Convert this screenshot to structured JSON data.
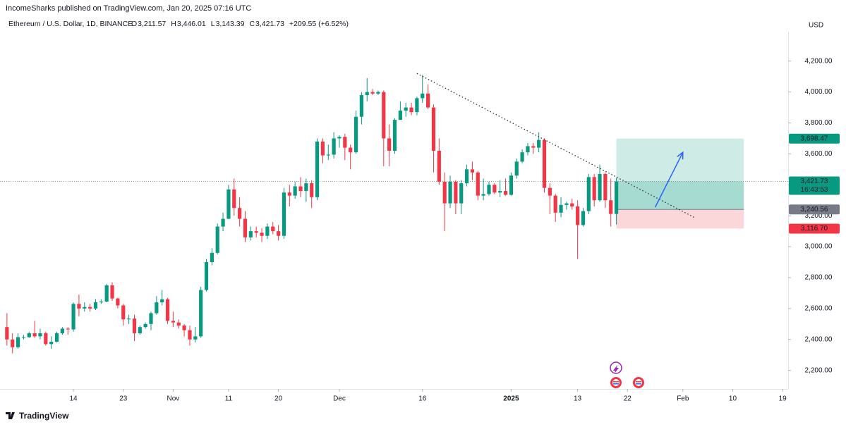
{
  "header": "IncomeSharks published on TradingView.com, Jan 20, 2025 07:16 UTC",
  "brand": "TradingView",
  "chart_data": {
    "type": "candlestick",
    "title": "Ethereum / U.S. Dollar, 1D, BINANCE",
    "currency": "USD",
    "ohlc_legend": [
      {
        "key": "O",
        "value": 3211.57,
        "label": "3,211.57"
      },
      {
        "key": "H",
        "value": 3446.01,
        "label": "3,446.01"
      },
      {
        "key": "L",
        "value": 3143.39,
        "label": "3,143.39"
      },
      {
        "key": "C",
        "value": 3421.73,
        "label": "3,421.73"
      }
    ],
    "change_label": "+209.55 (+6.52%)",
    "up_color": "#089981",
    "down_color": "#f23645",
    "x": [
      "2024-10-02",
      "2024-10-03",
      "2024-10-04",
      "2024-10-05",
      "2024-10-06",
      "2024-10-07",
      "2024-10-08",
      "2024-10-09",
      "2024-10-10",
      "2024-10-11",
      "2024-10-12",
      "2024-10-13",
      "2024-10-14",
      "2024-10-15",
      "2024-10-16",
      "2024-10-17",
      "2024-10-18",
      "2024-10-19",
      "2024-10-20",
      "2024-10-21",
      "2024-10-22",
      "2024-10-23",
      "2024-10-24",
      "2024-10-25",
      "2024-10-26",
      "2024-10-27",
      "2024-10-28",
      "2024-10-29",
      "2024-10-30",
      "2024-10-31",
      "2024-11-01",
      "2024-11-02",
      "2024-11-03",
      "2024-11-04",
      "2024-11-05",
      "2024-11-06",
      "2024-11-07",
      "2024-11-08",
      "2024-11-09",
      "2024-11-10",
      "2024-11-11",
      "2024-11-12",
      "2024-11-13",
      "2024-11-14",
      "2024-11-15",
      "2024-11-16",
      "2024-11-17",
      "2024-11-18",
      "2024-11-19",
      "2024-11-20",
      "2024-11-21",
      "2024-11-22",
      "2024-11-23",
      "2024-11-24",
      "2024-11-25",
      "2024-11-26",
      "2024-11-27",
      "2024-11-28",
      "2024-11-29",
      "2024-11-30",
      "2024-12-01",
      "2024-12-02",
      "2024-12-03",
      "2024-12-04",
      "2024-12-05",
      "2024-12-06",
      "2024-12-07",
      "2024-12-08",
      "2024-12-09",
      "2024-12-10",
      "2024-12-11",
      "2024-12-12",
      "2024-12-13",
      "2024-12-14",
      "2024-12-15",
      "2024-12-16",
      "2024-12-17",
      "2024-12-18",
      "2024-12-19",
      "2024-12-20",
      "2024-12-21",
      "2024-12-22",
      "2024-12-23",
      "2024-12-24",
      "2024-12-25",
      "2024-12-26",
      "2024-12-27",
      "2024-12-28",
      "2024-12-29",
      "2024-12-30",
      "2024-12-31",
      "2025-01-01",
      "2025-01-02",
      "2025-01-03",
      "2025-01-04",
      "2025-01-05",
      "2025-01-06",
      "2025-01-07",
      "2025-01-08",
      "2025-01-09",
      "2025-01-10",
      "2025-01-11",
      "2025-01-12",
      "2025-01-13",
      "2025-01-14",
      "2025-01-15",
      "2025-01-16",
      "2025-01-17",
      "2025-01-18",
      "2025-01-19",
      "2025-01-20"
    ],
    "open": [
      2480,
      2400,
      2350,
      2415,
      2415,
      2440,
      2420,
      2440,
      2370,
      2385,
      2440,
      2470,
      2465,
      2630,
      2600,
      2610,
      2600,
      2640,
      2645,
      2750,
      2665,
      2620,
      2530,
      2535,
      2440,
      2480,
      2500,
      2570,
      2640,
      2660,
      2520,
      2510,
      2490,
      2460,
      2400,
      2420,
      2720,
      2900,
      2960,
      3130,
      3180,
      3370,
      3250,
      3180,
      3060,
      3100,
      3090,
      3070,
      3130,
      3100,
      3070,
      3350,
      3330,
      3390,
      3360,
      3410,
      3320,
      3680,
      3590,
      3595,
      3700,
      3710,
      3640,
      3610,
      3840,
      3980,
      4000,
      3990,
      4000,
      3700,
      3620,
      3820,
      3880,
      3900,
      3870,
      3960,
      3990,
      3900,
      3620,
      3420,
      3280,
      3420,
      3280,
      3410,
      3500,
      3480,
      3330,
      3340,
      3400,
      3350,
      3360,
      3335,
      3460,
      3550,
      3610,
      3650,
      3640,
      3690,
      3380,
      3330,
      3220,
      3270,
      3280,
      3260,
      3140,
      3230,
      3450,
      3300,
      3470,
      3300,
      3211.57
    ],
    "high": [
      2570,
      2440,
      2440,
      2430,
      2450,
      2520,
      2470,
      2450,
      2420,
      2450,
      2480,
      2480,
      2640,
      2690,
      2640,
      2630,
      2660,
      2660,
      2760,
      2770,
      2670,
      2630,
      2560,
      2560,
      2490,
      2510,
      2580,
      2680,
      2720,
      2670,
      2580,
      2530,
      2500,
      2490,
      2480,
      2740,
      2920,
      2990,
      3150,
      3220,
      3400,
      3440,
      3320,
      3230,
      3130,
      3130,
      3120,
      3150,
      3160,
      3140,
      3380,
      3400,
      3420,
      3450,
      3440,
      3430,
      3700,
      3700,
      3660,
      3740,
      3720,
      3730,
      3660,
      3880,
      4000,
      4090,
      4020,
      4010,
      4010,
      3790,
      3830,
      3940,
      3930,
      3930,
      3970,
      4110,
      4050,
      3920,
      3700,
      3480,
      3460,
      3430,
      3430,
      3530,
      3550,
      3490,
      3440,
      3420,
      3410,
      3430,
      3440,
      3480,
      3570,
      3630,
      3670,
      3670,
      3740,
      3700,
      3410,
      3340,
      3320,
      3290,
      3310,
      3300,
      3250,
      3470,
      3470,
      3530,
      3480,
      3440,
      3446.01
    ],
    "low": [
      2360,
      2310,
      2340,
      2400,
      2410,
      2410,
      2400,
      2360,
      2340,
      2380,
      2430,
      2430,
      2450,
      2550,
      2580,
      2580,
      2590,
      2630,
      2640,
      2650,
      2600,
      2490,
      2500,
      2390,
      2430,
      2470,
      2460,
      2560,
      2620,
      2500,
      2480,
      2470,
      2420,
      2360,
      2380,
      2410,
      2710,
      2880,
      2950,
      3100,
      3180,
      3200,
      3130,
      3030,
      3040,
      3060,
      3030,
      3050,
      3080,
      3040,
      3050,
      3260,
      3310,
      3320,
      3290,
      3250,
      3300,
      3540,
      3560,
      3570,
      3640,
      3560,
      3500,
      3600,
      3790,
      3940,
      3980,
      3980,
      3520,
      3520,
      3600,
      3820,
      3840,
      3850,
      3850,
      3930,
      3890,
      3480,
      3400,
      3100,
      3250,
      3210,
      3210,
      3390,
      3430,
      3300,
      3300,
      3330,
      3340,
      3320,
      3330,
      3330,
      3440,
      3540,
      3590,
      3600,
      3610,
      3350,
      3210,
      3160,
      3190,
      3240,
      3240,
      2920,
      3130,
      3210,
      3260,
      3290,
      3250,
      3130,
      3143.39
    ],
    "close": [
      2400,
      2350,
      2415,
      2415,
      2440,
      2420,
      2440,
      2370,
      2385,
      2440,
      2470,
      2465,
      2630,
      2600,
      2610,
      2600,
      2640,
      2645,
      2750,
      2665,
      2620,
      2530,
      2535,
      2440,
      2480,
      2500,
      2570,
      2640,
      2660,
      2520,
      2510,
      2490,
      2460,
      2400,
      2420,
      2720,
      2900,
      2960,
      3130,
      3180,
      3370,
      3250,
      3180,
      3060,
      3100,
      3090,
      3070,
      3130,
      3100,
      3070,
      3350,
      3330,
      3390,
      3360,
      3410,
      3320,
      3680,
      3590,
      3595,
      3700,
      3710,
      3640,
      3610,
      3840,
      3980,
      4000,
      3990,
      4000,
      3700,
      3620,
      3820,
      3880,
      3900,
      3870,
      3960,
      3990,
      3900,
      3620,
      3420,
      3280,
      3420,
      3280,
      3410,
      3500,
      3480,
      3330,
      3340,
      3400,
      3350,
      3360,
      3335,
      3460,
      3550,
      3610,
      3650,
      3640,
      3690,
      3380,
      3330,
      3220,
      3270,
      3280,
      3260,
      3140,
      3230,
      3450,
      3300,
      3470,
      3300,
      3211.57,
      3421.73
    ],
    "xlim": [
      "2024-10-01",
      "2025-02-20"
    ],
    "xticks": [
      {
        "value": "2024-10-14",
        "label": "14"
      },
      {
        "value": "2024-10-23",
        "label": "23"
      },
      {
        "value": "2024-11-01",
        "label": "Nov"
      },
      {
        "value": "2024-11-11",
        "label": "11"
      },
      {
        "value": "2024-11-20",
        "label": "20"
      },
      {
        "value": "2024-12-01",
        "label": "Dec"
      },
      {
        "value": "2024-12-16",
        "label": "16"
      },
      {
        "value": "2025-01-01",
        "label": "2025"
      },
      {
        "value": "2025-01-13",
        "label": "13"
      },
      {
        "value": "2025-01-22",
        "label": "22"
      },
      {
        "value": "2025-02-01",
        "label": "Feb"
      },
      {
        "value": "2025-02-10",
        "label": "10"
      },
      {
        "value": "2025-02-19",
        "label": "19"
      }
    ],
    "ylim": [
      2080,
      4390
    ],
    "yticks": [
      {
        "value": 2200,
        "label": "2,200.00"
      },
      {
        "value": 2400,
        "label": "2,400.00"
      },
      {
        "value": 2600,
        "label": "2,600.00"
      },
      {
        "value": 2800,
        "label": "2,800.00"
      },
      {
        "value": 3000,
        "label": "3,000.00"
      },
      {
        "value": 3200,
        "label": "3,200.00"
      },
      {
        "value": 3400,
        "label": "3,400.00"
      },
      {
        "value": 3600,
        "label": "3,600.00"
      },
      {
        "value": 3800,
        "label": "3,800.00"
      },
      {
        "value": 4000,
        "label": "4,000.00"
      },
      {
        "value": 4200,
        "label": "4,200.00"
      }
    ],
    "grid": false,
    "last_price": {
      "value": 3421.73,
      "label": "3,421.73",
      "countdown": "16:43:53"
    },
    "position": {
      "target": {
        "value": 3698.47,
        "label": "3,698.47"
      },
      "entry": {
        "value": 3240.56,
        "label": "3,240.56"
      },
      "stop": {
        "value": 3116.7,
        "label": "3,116.70"
      },
      "start": "2025-01-20",
      "end": "2025-02-12"
    },
    "trendline": {
      "x": [
        "2024-12-15",
        "2025-02-03"
      ],
      "y": [
        4120,
        3190
      ]
    },
    "arrow": {
      "x": [
        "2025-01-27",
        "2025-02-01"
      ],
      "y": [
        3255,
        3610
      ]
    }
  }
}
